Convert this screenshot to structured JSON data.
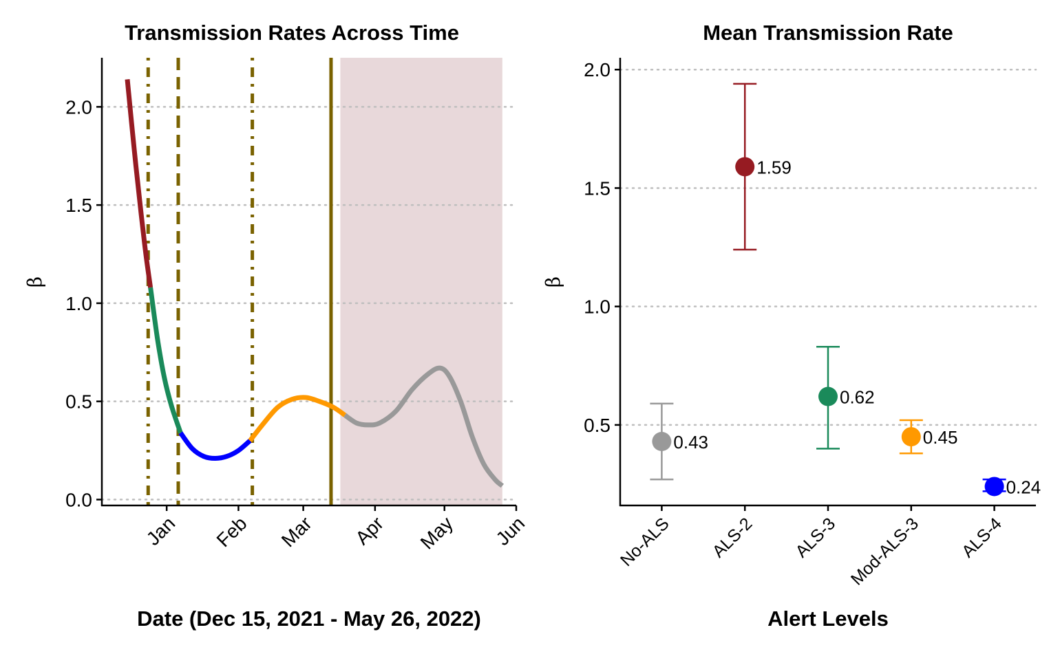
{
  "chart_data": [
    {
      "type": "line",
      "title": "Transmission Rates Across Time",
      "xlabel": "Date (Dec 15, 2021 - May 26, 2022)",
      "ylabel": "β",
      "x_start": "2021-12-15",
      "x_end": "2022-05-26",
      "xlim": [
        "2021-12-04",
        "2022-06-01"
      ],
      "ylim": [
        -0.03,
        2.25
      ],
      "x_tick_labels": [
        {
          "date": "2022-01-01",
          "label": "Jan"
        },
        {
          "date": "2022-02-01",
          "label": "Feb"
        },
        {
          "date": "2022-03-01",
          "label": "Mar"
        },
        {
          "date": "2022-04-01",
          "label": "Apr"
        },
        {
          "date": "2022-05-01",
          "label": "May"
        },
        {
          "date": "2022-06-01",
          "label": "Jun"
        }
      ],
      "y_ticks": [
        0.0,
        0.5,
        1.0,
        1.5,
        2.0
      ],
      "y_tick_labels": [
        "0.0",
        "0.5",
        "1.0",
        "1.5",
        "2.0"
      ],
      "grid": "horizontal dotted",
      "shaded_region": {
        "from": "2022-03-17",
        "to": "2022-05-26",
        "color": "#E8D8DA"
      },
      "vlines": [
        {
          "date": "2021-12-24",
          "style": "dotdash",
          "color": "#7A6200"
        },
        {
          "date": "2022-01-06",
          "style": "dashed",
          "color": "#7A6200"
        },
        {
          "date": "2022-02-07",
          "style": "dotdash",
          "color": "#7A6200"
        },
        {
          "date": "2022-03-13",
          "style": "solid",
          "color": "#7A6200"
        }
      ],
      "series": [
        {
          "color": "#961B22",
          "points": [
            [
              "2021-12-15",
              2.14
            ],
            [
              "2021-12-18",
              1.78
            ],
            [
              "2021-12-21",
              1.45
            ],
            [
              "2021-12-23",
              1.25
            ],
            [
              "2021-12-25",
              1.08
            ]
          ]
        },
        {
          "color": "#1A8A5A",
          "points": [
            [
              "2021-12-25",
              1.08
            ],
            [
              "2021-12-28",
              0.82
            ],
            [
              "2021-12-31",
              0.62
            ],
            [
              "2022-01-03",
              0.48
            ],
            [
              "2022-01-07",
              0.34
            ]
          ]
        },
        {
          "color": "#0000FF",
          "points": [
            [
              "2022-01-07",
              0.34
            ],
            [
              "2022-01-12",
              0.26
            ],
            [
              "2022-01-17",
              0.22
            ],
            [
              "2022-01-22",
              0.21
            ],
            [
              "2022-01-27",
              0.22
            ],
            [
              "2022-02-01",
              0.25
            ],
            [
              "2022-02-06",
              0.3
            ]
          ]
        },
        {
          "color": "#FF9900",
          "points": [
            [
              "2022-02-06",
              0.3
            ],
            [
              "2022-02-12",
              0.39
            ],
            [
              "2022-02-18",
              0.47
            ],
            [
              "2022-02-24",
              0.51
            ],
            [
              "2022-03-02",
              0.52
            ],
            [
              "2022-03-08",
              0.5
            ],
            [
              "2022-03-14",
              0.47
            ],
            [
              "2022-03-19",
              0.43
            ]
          ]
        },
        {
          "color": "#999999",
          "points": [
            [
              "2022-03-19",
              0.43
            ],
            [
              "2022-03-24",
              0.39
            ],
            [
              "2022-03-29",
              0.38
            ],
            [
              "2022-04-03",
              0.39
            ],
            [
              "2022-04-10",
              0.45
            ],
            [
              "2022-04-17",
              0.56
            ],
            [
              "2022-04-24",
              0.64
            ],
            [
              "2022-04-29",
              0.67
            ],
            [
              "2022-05-03",
              0.63
            ],
            [
              "2022-05-08",
              0.5
            ],
            [
              "2022-05-13",
              0.32
            ],
            [
              "2022-05-18",
              0.18
            ],
            [
              "2022-05-23",
              0.1
            ],
            [
              "2022-05-26",
              0.07
            ]
          ]
        }
      ]
    },
    {
      "type": "scatter",
      "title": "Mean Transmission Rate",
      "xlabel": "Alert Levels",
      "ylabel": "β",
      "ylim": [
        0.16,
        2.05
      ],
      "y_ticks": [
        0.5,
        1.0,
        1.5,
        2.0
      ],
      "y_tick_labels": [
        "0.5",
        "1.0",
        "1.5",
        "2.0"
      ],
      "grid": "horizontal dotted",
      "categories": [
        "No-ALS",
        "ALS-2",
        "ALS-3",
        "Mod-ALS-3",
        "ALS-4"
      ],
      "points": [
        {
          "category": "No-ALS",
          "mean": 0.43,
          "lower": 0.27,
          "upper": 0.59,
          "label": "0.43",
          "color": "#999999"
        },
        {
          "category": "ALS-2",
          "mean": 1.59,
          "lower": 1.24,
          "upper": 1.94,
          "label": "1.59",
          "color": "#961B22"
        },
        {
          "category": "ALS-3",
          "mean": 0.62,
          "lower": 0.4,
          "upper": 0.83,
          "label": "0.62",
          "color": "#1A8A5A"
        },
        {
          "category": "Mod-ALS-3",
          "mean": 0.45,
          "lower": 0.38,
          "upper": 0.52,
          "label": "0.45",
          "color": "#FF9900"
        },
        {
          "category": "ALS-4",
          "mean": 0.24,
          "lower": 0.22,
          "upper": 0.27,
          "label": "0.24",
          "color": "#0000FF"
        }
      ]
    }
  ]
}
